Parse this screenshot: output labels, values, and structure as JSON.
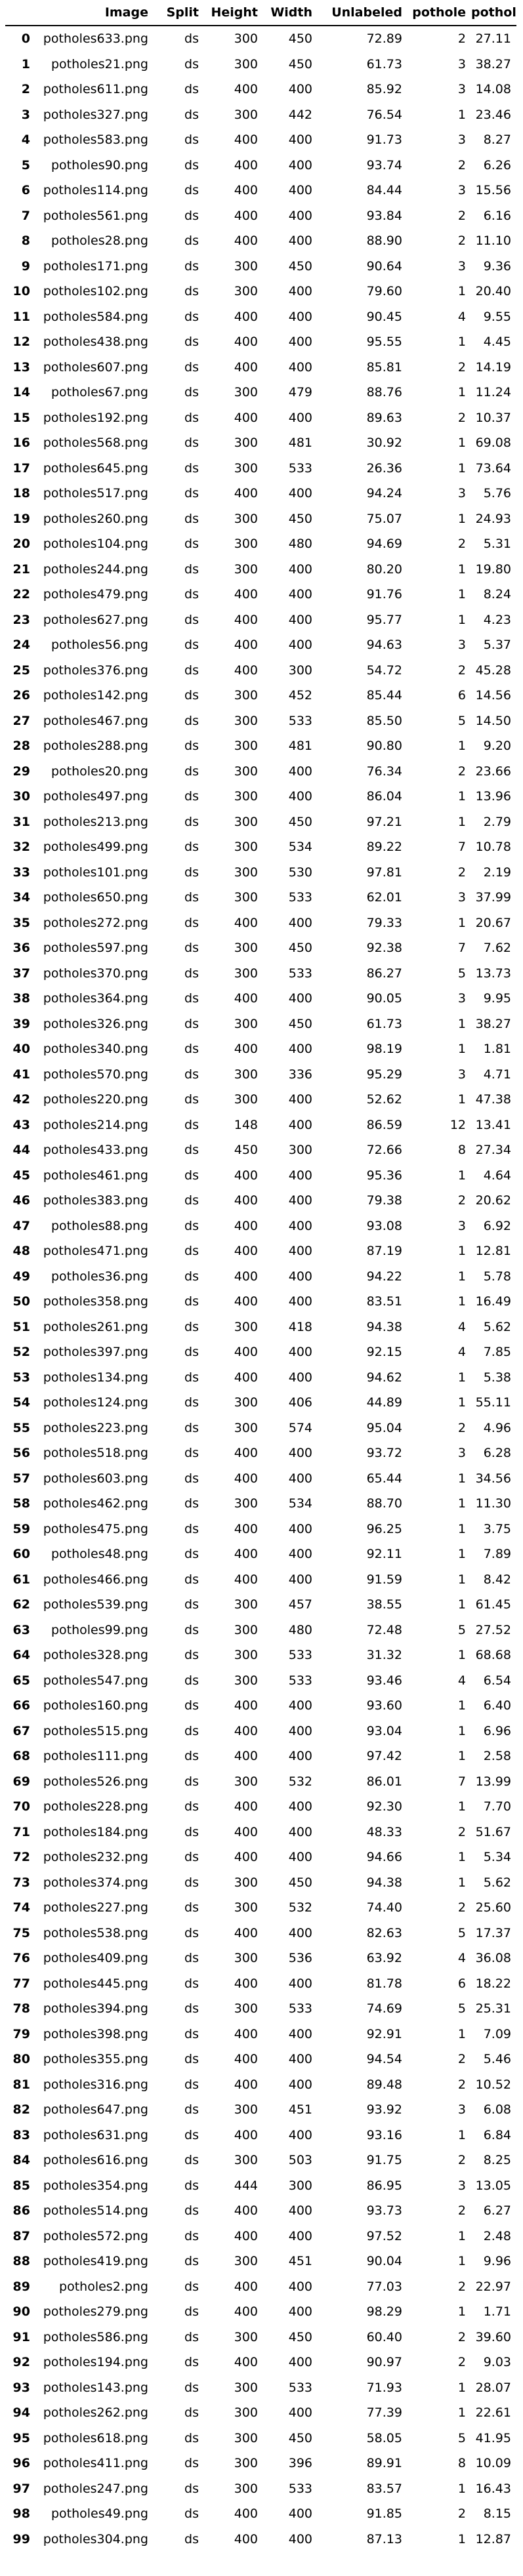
{
  "table": {
    "columns": [
      "",
      "Image",
      "Split",
      "Height",
      "Width",
      "Unlabeled",
      "pothole",
      "pothole"
    ],
    "rows": [
      [
        "0",
        "potholes633.png",
        "ds",
        "300",
        "450",
        "72.89",
        "2",
        "27.11"
      ],
      [
        "1",
        "potholes21.png",
        "ds",
        "300",
        "450",
        "61.73",
        "3",
        "38.27"
      ],
      [
        "2",
        "potholes611.png",
        "ds",
        "400",
        "400",
        "85.92",
        "3",
        "14.08"
      ],
      [
        "3",
        "potholes327.png",
        "ds",
        "300",
        "442",
        "76.54",
        "1",
        "23.46"
      ],
      [
        "4",
        "potholes583.png",
        "ds",
        "400",
        "400",
        "91.73",
        "3",
        "8.27"
      ],
      [
        "5",
        "potholes90.png",
        "ds",
        "400",
        "400",
        "93.74",
        "2",
        "6.26"
      ],
      [
        "6",
        "potholes114.png",
        "ds",
        "400",
        "400",
        "84.44",
        "3",
        "15.56"
      ],
      [
        "7",
        "potholes561.png",
        "ds",
        "400",
        "400",
        "93.84",
        "2",
        "6.16"
      ],
      [
        "8",
        "potholes28.png",
        "ds",
        "400",
        "400",
        "88.90",
        "2",
        "11.10"
      ],
      [
        "9",
        "potholes171.png",
        "ds",
        "300",
        "450",
        "90.64",
        "3",
        "9.36"
      ],
      [
        "10",
        "potholes102.png",
        "ds",
        "300",
        "400",
        "79.60",
        "1",
        "20.40"
      ],
      [
        "11",
        "potholes584.png",
        "ds",
        "400",
        "400",
        "90.45",
        "4",
        "9.55"
      ],
      [
        "12",
        "potholes438.png",
        "ds",
        "400",
        "400",
        "95.55",
        "1",
        "4.45"
      ],
      [
        "13",
        "potholes607.png",
        "ds",
        "400",
        "400",
        "85.81",
        "2",
        "14.19"
      ],
      [
        "14",
        "potholes67.png",
        "ds",
        "300",
        "479",
        "88.76",
        "1",
        "11.24"
      ],
      [
        "15",
        "potholes192.png",
        "ds",
        "400",
        "400",
        "89.63",
        "2",
        "10.37"
      ],
      [
        "16",
        "potholes568.png",
        "ds",
        "300",
        "481",
        "30.92",
        "1",
        "69.08"
      ],
      [
        "17",
        "potholes645.png",
        "ds",
        "300",
        "533",
        "26.36",
        "1",
        "73.64"
      ],
      [
        "18",
        "potholes517.png",
        "ds",
        "400",
        "400",
        "94.24",
        "3",
        "5.76"
      ],
      [
        "19",
        "potholes260.png",
        "ds",
        "300",
        "450",
        "75.07",
        "1",
        "24.93"
      ],
      [
        "20",
        "potholes104.png",
        "ds",
        "300",
        "480",
        "94.69",
        "2",
        "5.31"
      ],
      [
        "21",
        "potholes244.png",
        "ds",
        "300",
        "400",
        "80.20",
        "1",
        "19.80"
      ],
      [
        "22",
        "potholes479.png",
        "ds",
        "400",
        "400",
        "91.76",
        "1",
        "8.24"
      ],
      [
        "23",
        "potholes627.png",
        "ds",
        "400",
        "400",
        "95.77",
        "1",
        "4.23"
      ],
      [
        "24",
        "potholes56.png",
        "ds",
        "400",
        "400",
        "94.63",
        "3",
        "5.37"
      ],
      [
        "25",
        "potholes376.png",
        "ds",
        "400",
        "300",
        "54.72",
        "2",
        "45.28"
      ],
      [
        "26",
        "potholes142.png",
        "ds",
        "300",
        "452",
        "85.44",
        "6",
        "14.56"
      ],
      [
        "27",
        "potholes467.png",
        "ds",
        "300",
        "533",
        "85.50",
        "5",
        "14.50"
      ],
      [
        "28",
        "potholes288.png",
        "ds",
        "300",
        "481",
        "90.80",
        "1",
        "9.20"
      ],
      [
        "29",
        "potholes20.png",
        "ds",
        "300",
        "400",
        "76.34",
        "2",
        "23.66"
      ],
      [
        "30",
        "potholes497.png",
        "ds",
        "300",
        "400",
        "86.04",
        "1",
        "13.96"
      ],
      [
        "31",
        "potholes213.png",
        "ds",
        "300",
        "450",
        "97.21",
        "1",
        "2.79"
      ],
      [
        "32",
        "potholes499.png",
        "ds",
        "300",
        "534",
        "89.22",
        "7",
        "10.78"
      ],
      [
        "33",
        "potholes101.png",
        "ds",
        "300",
        "530",
        "97.81",
        "2",
        "2.19"
      ],
      [
        "34",
        "potholes650.png",
        "ds",
        "300",
        "533",
        "62.01",
        "3",
        "37.99"
      ],
      [
        "35",
        "potholes272.png",
        "ds",
        "400",
        "400",
        "79.33",
        "1",
        "20.67"
      ],
      [
        "36",
        "potholes597.png",
        "ds",
        "300",
        "450",
        "92.38",
        "7",
        "7.62"
      ],
      [
        "37",
        "potholes370.png",
        "ds",
        "300",
        "533",
        "86.27",
        "5",
        "13.73"
      ],
      [
        "38",
        "potholes364.png",
        "ds",
        "400",
        "400",
        "90.05",
        "3",
        "9.95"
      ],
      [
        "39",
        "potholes326.png",
        "ds",
        "300",
        "450",
        "61.73",
        "1",
        "38.27"
      ],
      [
        "40",
        "potholes340.png",
        "ds",
        "400",
        "400",
        "98.19",
        "1",
        "1.81"
      ],
      [
        "41",
        "potholes570.png",
        "ds",
        "300",
        "336",
        "95.29",
        "3",
        "4.71"
      ],
      [
        "42",
        "potholes220.png",
        "ds",
        "300",
        "400",
        "52.62",
        "1",
        "47.38"
      ],
      [
        "43",
        "potholes214.png",
        "ds",
        "148",
        "400",
        "86.59",
        "12",
        "13.41"
      ],
      [
        "44",
        "potholes433.png",
        "ds",
        "450",
        "300",
        "72.66",
        "8",
        "27.34"
      ],
      [
        "45",
        "potholes461.png",
        "ds",
        "400",
        "400",
        "95.36",
        "1",
        "4.64"
      ],
      [
        "46",
        "potholes383.png",
        "ds",
        "400",
        "400",
        "79.38",
        "2",
        "20.62"
      ],
      [
        "47",
        "potholes88.png",
        "ds",
        "400",
        "400",
        "93.08",
        "3",
        "6.92"
      ],
      [
        "48",
        "potholes471.png",
        "ds",
        "400",
        "400",
        "87.19",
        "1",
        "12.81"
      ],
      [
        "49",
        "potholes36.png",
        "ds",
        "400",
        "400",
        "94.22",
        "1",
        "5.78"
      ],
      [
        "50",
        "potholes358.png",
        "ds",
        "400",
        "400",
        "83.51",
        "1",
        "16.49"
      ],
      [
        "51",
        "potholes261.png",
        "ds",
        "300",
        "418",
        "94.38",
        "4",
        "5.62"
      ],
      [
        "52",
        "potholes397.png",
        "ds",
        "400",
        "400",
        "92.15",
        "4",
        "7.85"
      ],
      [
        "53",
        "potholes134.png",
        "ds",
        "400",
        "400",
        "94.62",
        "1",
        "5.38"
      ],
      [
        "54",
        "potholes124.png",
        "ds",
        "300",
        "406",
        "44.89",
        "1",
        "55.11"
      ],
      [
        "55",
        "potholes223.png",
        "ds",
        "300",
        "574",
        "95.04",
        "2",
        "4.96"
      ],
      [
        "56",
        "potholes518.png",
        "ds",
        "400",
        "400",
        "93.72",
        "3",
        "6.28"
      ],
      [
        "57",
        "potholes603.png",
        "ds",
        "400",
        "400",
        "65.44",
        "1",
        "34.56"
      ],
      [
        "58",
        "potholes462.png",
        "ds",
        "300",
        "534",
        "88.70",
        "1",
        "11.30"
      ],
      [
        "59",
        "potholes475.png",
        "ds",
        "400",
        "400",
        "96.25",
        "1",
        "3.75"
      ],
      [
        "60",
        "potholes48.png",
        "ds",
        "400",
        "400",
        "92.11",
        "1",
        "7.89"
      ],
      [
        "61",
        "potholes466.png",
        "ds",
        "400",
        "400",
        "91.59",
        "1",
        "8.42"
      ],
      [
        "62",
        "potholes539.png",
        "ds",
        "300",
        "457",
        "38.55",
        "1",
        "61.45"
      ],
      [
        "63",
        "potholes99.png",
        "ds",
        "300",
        "480",
        "72.48",
        "5",
        "27.52"
      ],
      [
        "64",
        "potholes328.png",
        "ds",
        "300",
        "533",
        "31.32",
        "1",
        "68.68"
      ],
      [
        "65",
        "potholes547.png",
        "ds",
        "300",
        "533",
        "93.46",
        "4",
        "6.54"
      ],
      [
        "66",
        "potholes160.png",
        "ds",
        "400",
        "400",
        "93.60",
        "1",
        "6.40"
      ],
      [
        "67",
        "potholes515.png",
        "ds",
        "400",
        "400",
        "93.04",
        "1",
        "6.96"
      ],
      [
        "68",
        "potholes111.png",
        "ds",
        "400",
        "400",
        "97.42",
        "1",
        "2.58"
      ],
      [
        "69",
        "potholes526.png",
        "ds",
        "300",
        "532",
        "86.01",
        "7",
        "13.99"
      ],
      [
        "70",
        "potholes228.png",
        "ds",
        "400",
        "400",
        "92.30",
        "1",
        "7.70"
      ],
      [
        "71",
        "potholes184.png",
        "ds",
        "400",
        "400",
        "48.33",
        "2",
        "51.67"
      ],
      [
        "72",
        "potholes232.png",
        "ds",
        "400",
        "400",
        "94.66",
        "1",
        "5.34"
      ],
      [
        "73",
        "potholes374.png",
        "ds",
        "300",
        "450",
        "94.38",
        "1",
        "5.62"
      ],
      [
        "74",
        "potholes227.png",
        "ds",
        "300",
        "532",
        "74.40",
        "2",
        "25.60"
      ],
      [
        "75",
        "potholes538.png",
        "ds",
        "400",
        "400",
        "82.63",
        "5",
        "17.37"
      ],
      [
        "76",
        "potholes409.png",
        "ds",
        "300",
        "536",
        "63.92",
        "4",
        "36.08"
      ],
      [
        "77",
        "potholes445.png",
        "ds",
        "400",
        "400",
        "81.78",
        "6",
        "18.22"
      ],
      [
        "78",
        "potholes394.png",
        "ds",
        "300",
        "533",
        "74.69",
        "5",
        "25.31"
      ],
      [
        "79",
        "potholes398.png",
        "ds",
        "400",
        "400",
        "92.91",
        "1",
        "7.09"
      ],
      [
        "80",
        "potholes355.png",
        "ds",
        "400",
        "400",
        "94.54",
        "2",
        "5.46"
      ],
      [
        "81",
        "potholes316.png",
        "ds",
        "400",
        "400",
        "89.48",
        "2",
        "10.52"
      ],
      [
        "82",
        "potholes647.png",
        "ds",
        "300",
        "451",
        "93.92",
        "3",
        "6.08"
      ],
      [
        "83",
        "potholes631.png",
        "ds",
        "400",
        "400",
        "93.16",
        "1",
        "6.84"
      ],
      [
        "84",
        "potholes616.png",
        "ds",
        "300",
        "503",
        "91.75",
        "2",
        "8.25"
      ],
      [
        "85",
        "potholes354.png",
        "ds",
        "444",
        "300",
        "86.95",
        "3",
        "13.05"
      ],
      [
        "86",
        "potholes514.png",
        "ds",
        "400",
        "400",
        "93.73",
        "2",
        "6.27"
      ],
      [
        "87",
        "potholes572.png",
        "ds",
        "400",
        "400",
        "97.52",
        "1",
        "2.48"
      ],
      [
        "88",
        "potholes419.png",
        "ds",
        "300",
        "451",
        "90.04",
        "1",
        "9.96"
      ],
      [
        "89",
        "potholes2.png",
        "ds",
        "400",
        "400",
        "77.03",
        "2",
        "22.97"
      ],
      [
        "90",
        "potholes279.png",
        "ds",
        "400",
        "400",
        "98.29",
        "1",
        "1.71"
      ],
      [
        "91",
        "potholes586.png",
        "ds",
        "300",
        "450",
        "60.40",
        "2",
        "39.60"
      ],
      [
        "92",
        "potholes194.png",
        "ds",
        "400",
        "400",
        "90.97",
        "2",
        "9.03"
      ],
      [
        "93",
        "potholes143.png",
        "ds",
        "300",
        "533",
        "71.93",
        "1",
        "28.07"
      ],
      [
        "94",
        "potholes262.png",
        "ds",
        "300",
        "400",
        "77.39",
        "1",
        "22.61"
      ],
      [
        "95",
        "potholes618.png",
        "ds",
        "300",
        "450",
        "58.05",
        "5",
        "41.95"
      ],
      [
        "96",
        "potholes411.png",
        "ds",
        "300",
        "396",
        "89.91",
        "8",
        "10.09"
      ],
      [
        "97",
        "potholes247.png",
        "ds",
        "300",
        "533",
        "83.57",
        "1",
        "16.43"
      ],
      [
        "98",
        "potholes49.png",
        "ds",
        "400",
        "400",
        "91.85",
        "2",
        "8.15"
      ],
      [
        "99",
        "potholes304.png",
        "ds",
        "400",
        "400",
        "87.13",
        "1",
        "12.87"
      ]
    ]
  }
}
